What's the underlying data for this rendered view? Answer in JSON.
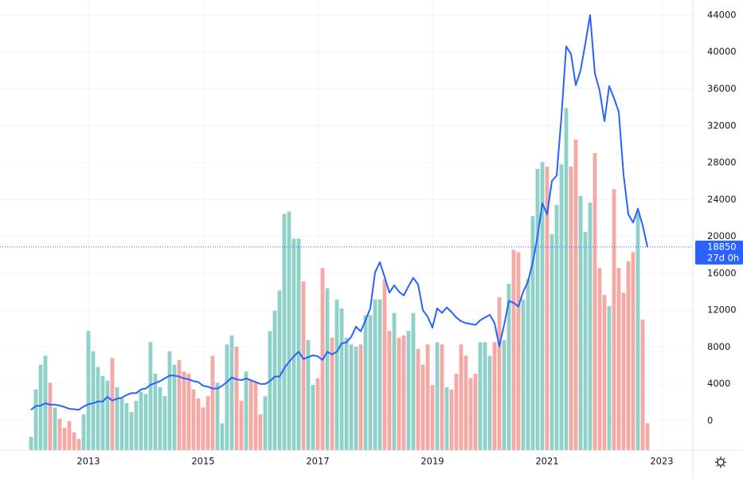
{
  "chart_data": {
    "type": "line",
    "x": [
      0,
      1,
      2,
      3,
      4,
      5,
      6,
      7,
      8,
      9,
      10,
      11,
      12,
      13,
      14,
      15,
      16,
      17,
      18,
      19,
      20,
      21,
      22,
      23,
      24,
      25,
      26,
      27,
      28,
      29,
      30,
      31,
      32,
      33,
      34,
      35,
      36,
      37,
      38,
      39,
      40,
      41,
      42,
      43,
      44,
      45,
      46,
      47,
      48,
      49,
      50,
      51,
      52,
      53,
      54,
      55,
      56,
      57,
      58,
      59,
      60,
      61,
      62,
      63,
      64,
      65,
      66,
      67,
      68,
      69,
      70,
      71,
      72,
      73,
      74,
      75,
      76,
      77,
      78,
      79,
      80,
      81,
      82,
      83,
      84,
      85,
      86,
      87,
      88,
      89,
      90,
      91,
      92,
      93,
      94,
      95,
      96,
      97,
      98,
      99,
      100,
      101,
      102,
      103,
      104,
      105,
      106,
      107,
      108,
      109,
      110,
      111,
      112,
      113,
      114,
      115,
      116,
      117,
      118,
      119,
      120,
      121,
      122,
      123,
      124,
      125,
      126,
      127,
      128,
      129
    ],
    "series": [
      {
        "color": "#2962ff",
        "values": [
          1200,
          1600,
          1650,
          1900,
          1750,
          1750,
          1650,
          1500,
          1300,
          1250,
          1200,
          1550,
          1800,
          1900,
          2100,
          2100,
          2600,
          2200,
          2400,
          2500,
          2800,
          3000,
          3000,
          3400,
          3500,
          3900,
          4100,
          4300,
          4600,
          4900,
          4900,
          4800,
          4600,
          4500,
          4300,
          4200,
          3800,
          3700,
          3500,
          3500,
          3800,
          4200,
          4700,
          4500,
          4400,
          4600,
          4400,
          4200,
          4000,
          4000,
          4300,
          4800,
          4800,
          5700,
          6400,
          7000,
          7500,
          6700,
          6900,
          7100,
          7000,
          6600,
          7500,
          7200,
          7500,
          8400,
          8500,
          9100,
          10200,
          9700,
          10900,
          12200,
          16100,
          17200,
          15600,
          13900,
          14700,
          14000,
          13600,
          14600,
          15500,
          14800,
          12000,
          11300,
          10100,
          12200,
          11700,
          12300,
          11800,
          11200,
          10800,
          10600,
          10500,
          10400,
          10900,
          11200,
          11500,
          10600,
          8100,
          10400,
          13000,
          12800,
          12400,
          14000,
          15100,
          17200,
          20000,
          23600,
          22400,
          26000,
          26600,
          33000,
          40600,
          39800,
          36400,
          38000,
          40900,
          44000,
          37700,
          35800,
          32500,
          36300,
          35000,
          33500,
          26700,
          22400,
          21500,
          23000,
          21200,
          18850
        ]
      }
    ],
    "volume": {
      "up_color": "#8fd1c8",
      "down_color": "#f5a8a4",
      "ylim": [
        0,
        200
      ],
      "values": [
        6,
        27,
        38,
        42,
        30,
        19,
        14,
        10,
        13,
        8,
        5,
        16,
        53,
        44,
        37,
        33,
        31,
        41,
        28,
        23,
        21,
        17,
        22,
        26,
        25,
        48,
        34,
        28,
        24,
        44,
        38,
        40,
        35,
        34,
        27,
        23,
        19,
        24,
        42,
        30,
        12,
        47,
        51,
        46,
        22,
        35,
        31,
        30,
        16,
        24,
        53,
        62,
        71,
        105,
        106,
        94,
        94,
        75,
        49,
        29,
        32,
        81,
        72,
        50,
        67,
        63,
        50,
        47,
        46,
        47,
        60,
        60,
        67,
        67,
        76,
        53,
        61,
        50,
        51,
        53,
        61,
        45,
        38,
        47,
        29,
        48,
        47,
        28,
        27,
        34,
        47,
        42,
        32,
        34,
        48,
        48,
        42,
        48,
        68,
        49,
        74,
        89,
        88,
        67,
        76,
        104,
        125,
        128,
        126,
        96,
        109,
        127,
        152,
        126,
        138,
        113,
        97,
        110,
        132,
        81,
        69,
        64,
        116,
        81,
        70,
        84,
        88,
        106,
        58,
        12
      ]
    },
    "xlim": [
      -6.5,
      138.5
    ],
    "xticks": [
      {
        "value": 12,
        "label": "2013"
      },
      {
        "value": 36,
        "label": "2015"
      },
      {
        "value": 60,
        "label": "2017"
      },
      {
        "value": 84,
        "label": "2019"
      },
      {
        "value": 108,
        "label": "2021"
      },
      {
        "value": 132,
        "label": "2023"
      }
    ],
    "ylim": [
      -3200,
      45640
    ],
    "yticks": [
      0,
      4000,
      8000,
      12000,
      16000,
      20000,
      24000,
      28000,
      32000,
      36000,
      40000,
      44000
    ],
    "grid": true,
    "countdown": "27d 0h"
  }
}
